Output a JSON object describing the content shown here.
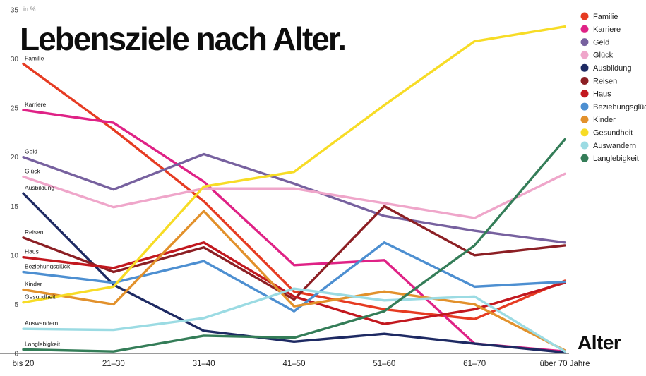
{
  "chart_data": {
    "type": "line",
    "title": "Lebensziele nach Alter.",
    "unit_label": "in %",
    "xlabel": "Alter",
    "ylabel": "in %",
    "ylim": [
      0,
      35
    ],
    "ytick_step": 5,
    "grid": false,
    "legend_position": "top-right",
    "categories": [
      "bis 20",
      "21–30",
      "31–40",
      "41–50",
      "51–60",
      "61–70",
      "über 70 Jahre"
    ],
    "series": [
      {
        "name": "Familie",
        "color": "#e63b22",
        "values": [
          29.5,
          22.8,
          15.5,
          6.3,
          4.5,
          3.5,
          7.4
        ]
      },
      {
        "name": "Karriere",
        "color": "#df2286",
        "values": [
          24.8,
          23.5,
          17.5,
          9.0,
          9.5,
          1.0,
          0.2
        ]
      },
      {
        "name": "Geld",
        "color": "#77619f",
        "values": [
          20.0,
          16.7,
          20.3,
          17.3,
          14.0,
          12.5,
          11.3
        ]
      },
      {
        "name": "Glück",
        "color": "#efa6ca",
        "values": [
          18.0,
          14.9,
          16.8,
          16.8,
          15.3,
          13.8,
          18.3
        ]
      },
      {
        "name": "Ausbildung",
        "color": "#1e2a63",
        "values": [
          16.3,
          7.0,
          2.3,
          1.2,
          2.0,
          1.0,
          0.1
        ]
      },
      {
        "name": "Reisen",
        "color": "#8c1f24",
        "values": [
          11.8,
          8.3,
          10.8,
          5.5,
          15.0,
          10.0,
          11.0
        ]
      },
      {
        "name": "Haus",
        "color": "#c2181f",
        "values": [
          9.8,
          8.7,
          11.3,
          5.8,
          3.0,
          4.5,
          7.2
        ]
      },
      {
        "name": "Beziehungsglück",
        "color": "#4d8fd1",
        "values": [
          8.3,
          7.2,
          9.4,
          4.3,
          11.3,
          6.8,
          7.3
        ]
      },
      {
        "name": "Kinder",
        "color": "#e2912c",
        "values": [
          6.5,
          5.0,
          14.5,
          4.8,
          6.3,
          5.0,
          0.3
        ]
      },
      {
        "name": "Gesundheit",
        "color": "#f7dc26",
        "values": [
          5.2,
          6.8,
          17.0,
          18.5,
          25.3,
          31.8,
          33.3
        ]
      },
      {
        "name": "Auswandern",
        "color": "#9bdbe3",
        "values": [
          2.5,
          2.4,
          3.6,
          6.6,
          5.4,
          5.8,
          0.2
        ]
      },
      {
        "name": "Langlebigkeit",
        "color": "#347d58",
        "values": [
          0.4,
          0.2,
          1.8,
          1.6,
          4.3,
          11.0,
          21.8
        ]
      }
    ]
  }
}
